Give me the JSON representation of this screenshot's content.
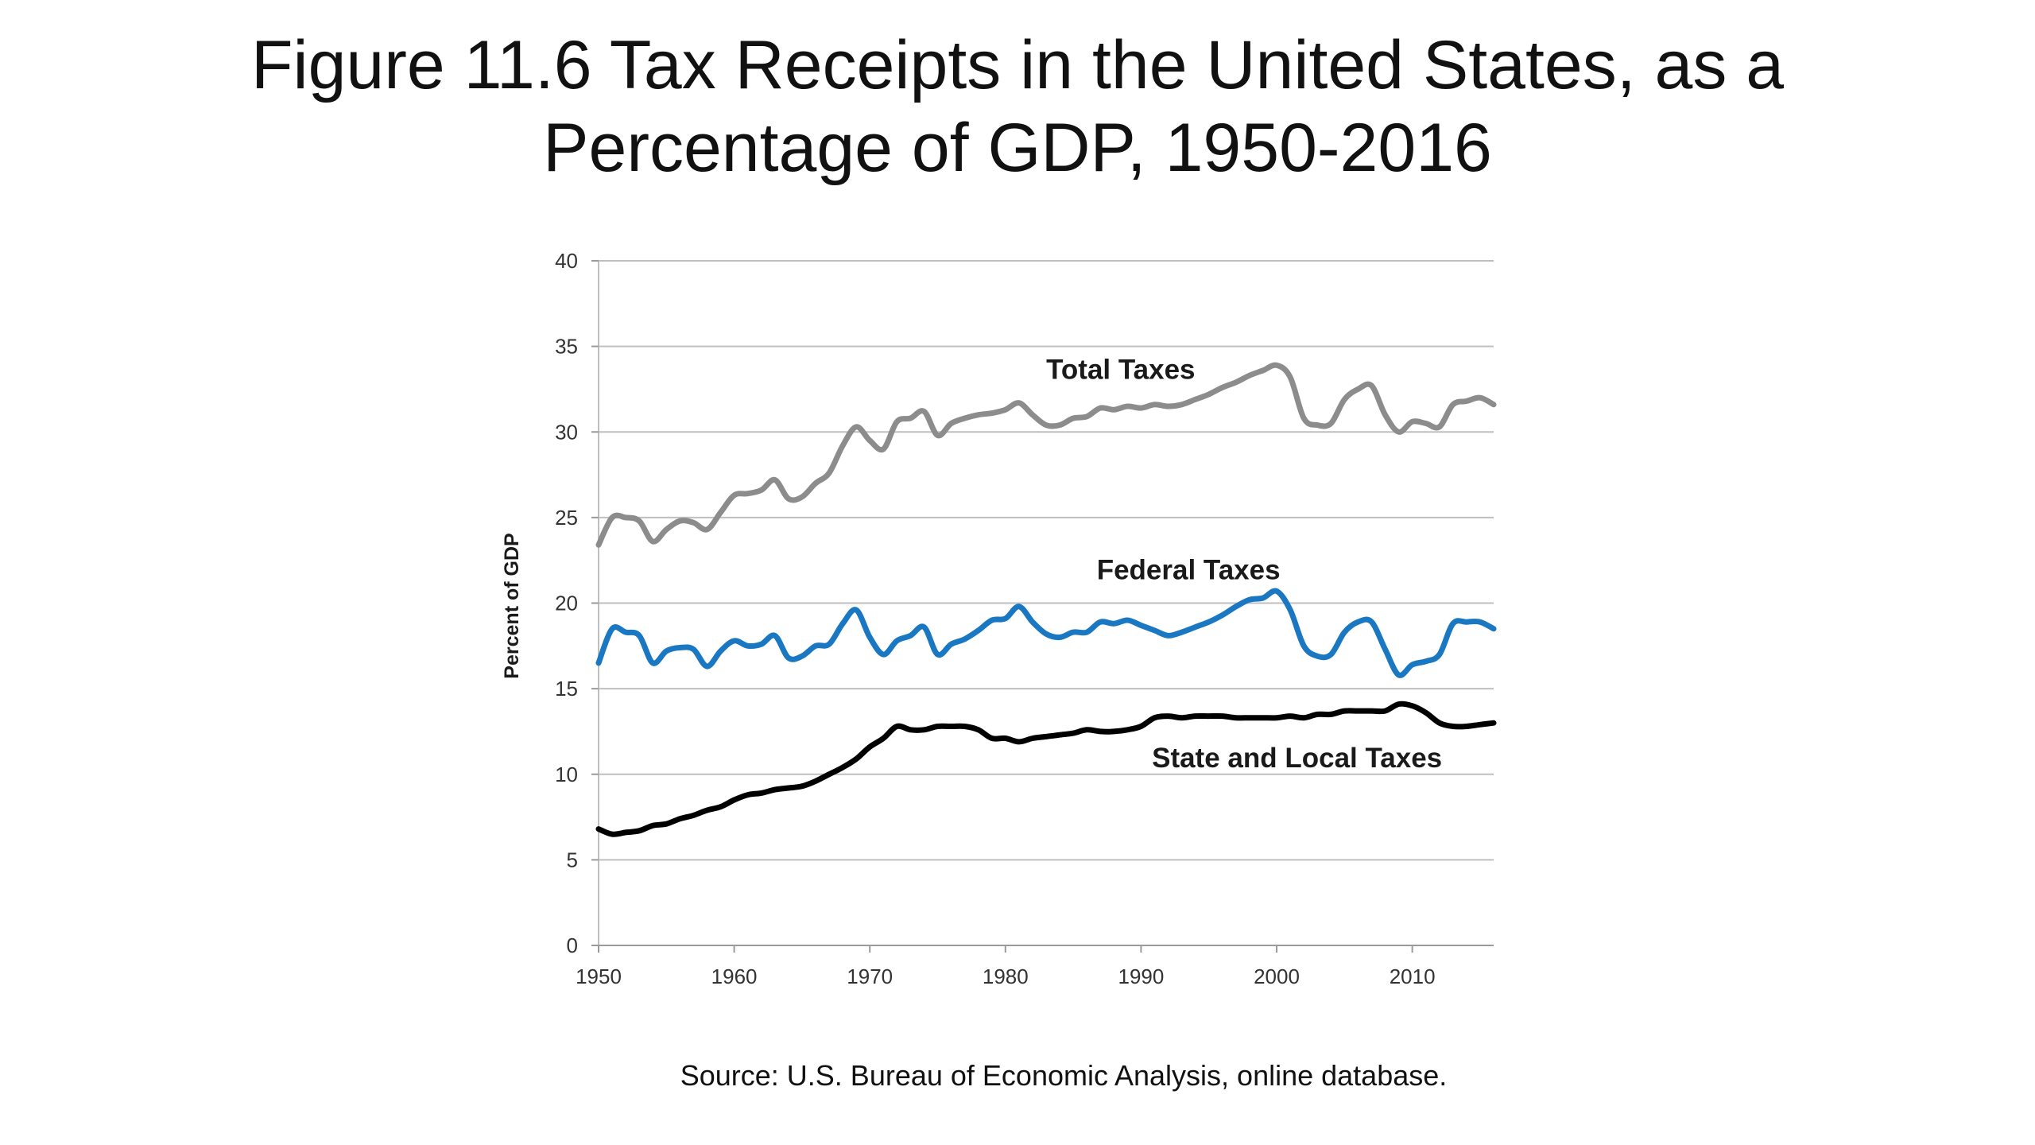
{
  "slide": {
    "title_line1": "Figure 11.6 Tax Receipts in the United States, as a",
    "title_line2": "Percentage of GDP, 1950-2016",
    "source": "Source: U.S. Bureau of Economic Analysis, online database."
  },
  "chart_data": {
    "type": "line",
    "xlabel": "",
    "ylabel": "Percent of GDP",
    "xlim": [
      1950,
      2016
    ],
    "ylim": [
      0,
      40
    ],
    "x_ticks": [
      1950,
      1960,
      1970,
      1980,
      1990,
      2000,
      2010
    ],
    "y_ticks": [
      0,
      5,
      10,
      15,
      20,
      25,
      30,
      35,
      40
    ],
    "grid": "horizontal",
    "legend": "inline labels",
    "x": [
      1950,
      1951,
      1952,
      1953,
      1954,
      1955,
      1956,
      1957,
      1958,
      1959,
      1960,
      1961,
      1962,
      1963,
      1964,
      1965,
      1966,
      1967,
      1968,
      1969,
      1970,
      1971,
      1972,
      1973,
      1974,
      1975,
      1976,
      1977,
      1978,
      1979,
      1980,
      1981,
      1982,
      1983,
      1984,
      1985,
      1986,
      1987,
      1988,
      1989,
      1990,
      1991,
      1992,
      1993,
      1994,
      1995,
      1996,
      1997,
      1998,
      1999,
      2000,
      2001,
      2002,
      2003,
      2004,
      2005,
      2006,
      2007,
      2008,
      2009,
      2010,
      2011,
      2012,
      2013,
      2014,
      2015,
      2016
    ],
    "series": [
      {
        "name": "Total Taxes",
        "color": "#8c8c8c",
        "values": [
          23.4,
          25.0,
          25.0,
          24.8,
          23.6,
          24.3,
          24.8,
          24.7,
          24.3,
          25.3,
          26.3,
          26.4,
          26.6,
          27.2,
          26.1,
          26.2,
          27.0,
          27.6,
          29.2,
          30.3,
          29.5,
          29.0,
          30.6,
          30.8,
          31.2,
          29.8,
          30.5,
          30.8,
          31.0,
          31.1,
          31.3,
          31.7,
          31.0,
          30.4,
          30.4,
          30.8,
          30.9,
          31.4,
          31.3,
          31.5,
          31.4,
          31.6,
          31.5,
          31.6,
          31.9,
          32.2,
          32.6,
          32.9,
          33.3,
          33.6,
          33.9,
          33.2,
          30.8,
          30.4,
          30.5,
          31.9,
          32.5,
          32.7,
          31.0,
          30.0,
          30.6,
          30.5,
          30.3,
          31.6,
          31.8,
          32.0,
          31.6
        ]
      },
      {
        "name": "Federal Taxes",
        "color": "#1a78c2",
        "values": [
          16.5,
          18.5,
          18.3,
          18.1,
          16.5,
          17.2,
          17.4,
          17.3,
          16.3,
          17.2,
          17.8,
          17.5,
          17.6,
          18.1,
          16.8,
          16.9,
          17.5,
          17.6,
          18.8,
          19.6,
          18.0,
          17.0,
          17.8,
          18.1,
          18.6,
          17.0,
          17.6,
          17.9,
          18.4,
          19.0,
          19.1,
          19.8,
          18.9,
          18.2,
          18.0,
          18.3,
          18.3,
          18.9,
          18.8,
          19.0,
          18.7,
          18.4,
          18.1,
          18.3,
          18.6,
          18.9,
          19.3,
          19.8,
          20.2,
          20.3,
          20.7,
          19.6,
          17.5,
          16.9,
          17.0,
          18.3,
          18.9,
          18.9,
          17.3,
          15.8,
          16.4,
          16.6,
          17.0,
          18.8,
          18.9,
          18.9,
          18.5
        ]
      },
      {
        "name": "State and Local  Taxes",
        "color": "#000000",
        "values": [
          6.8,
          6.5,
          6.6,
          6.7,
          7.0,
          7.1,
          7.4,
          7.6,
          7.9,
          8.1,
          8.5,
          8.8,
          8.9,
          9.1,
          9.2,
          9.3,
          9.6,
          10.0,
          10.4,
          10.9,
          11.6,
          12.1,
          12.8,
          12.6,
          12.6,
          12.8,
          12.8,
          12.8,
          12.6,
          12.1,
          12.1,
          11.9,
          12.1,
          12.2,
          12.3,
          12.4,
          12.6,
          12.5,
          12.5,
          12.6,
          12.8,
          13.3,
          13.4,
          13.3,
          13.4,
          13.4,
          13.4,
          13.3,
          13.3,
          13.3,
          13.3,
          13.4,
          13.3,
          13.5,
          13.5,
          13.7,
          13.7,
          13.7,
          13.7,
          14.1,
          14.0,
          13.6,
          13.0,
          12.8,
          12.8,
          12.9,
          13.0
        ]
      }
    ]
  }
}
